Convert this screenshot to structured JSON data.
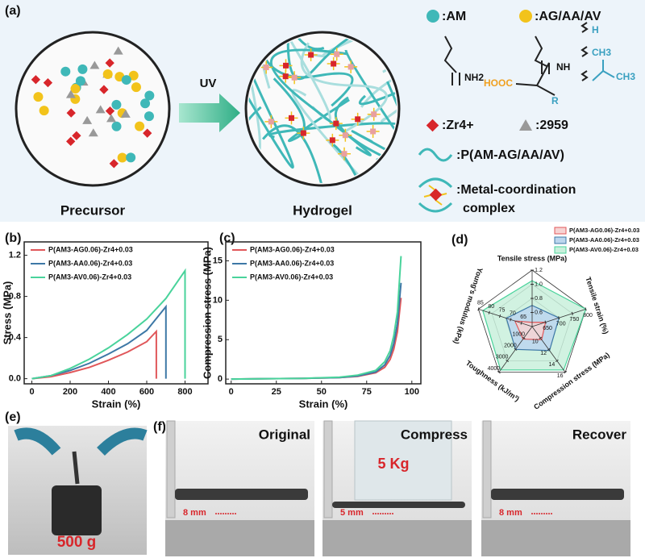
{
  "panel_labels": [
    "(a)",
    "(b)",
    "(c)",
    "(d)",
    "(e)",
    "(f)"
  ],
  "panel_a": {
    "uv": "UV",
    "precursor": "Precursor",
    "hydrogel": "Hydrogel",
    "legend": [
      ":AM",
      ":AG/AA/AV",
      ":Zr4+",
      ":2959",
      ":P(AM-AG/AA/AV)",
      ":Metal-coordination",
      "complex"
    ],
    "chem": [
      "NH2",
      "NH",
      "HOOC",
      "R",
      "H",
      "CH3",
      "CH3"
    ]
  },
  "chart_data": [
    {
      "type": "line",
      "xlabel": "Strain (%)",
      "ylabel": "Stress (MPa)",
      "xlim": [
        -40,
        920
      ],
      "ylim": [
        -0.05,
        1.33
      ],
      "xticks": [
        0,
        200,
        400,
        600,
        800
      ],
      "yticks": [
        {
          "value": 0,
          "label": "0.0"
        },
        0.4,
        0.8,
        1.2
      ],
      "series": [
        {
          "name": "P(AM3-AG0.06)-Zr4+0.03",
          "color": "#e0575a",
          "x": [
            0,
            100,
            200,
            300,
            400,
            500,
            600,
            650,
            650
          ],
          "values": [
            0,
            0.02,
            0.06,
            0.11,
            0.18,
            0.26,
            0.36,
            0.46,
            0
          ]
        },
        {
          "name": "P(AM3-AA0.06)-Zr4+0.03",
          "color": "#3d78a6",
          "x": [
            0,
            100,
            200,
            300,
            400,
            500,
            600,
            700,
            700
          ],
          "values": [
            0,
            0.03,
            0.08,
            0.15,
            0.24,
            0.34,
            0.47,
            0.7,
            0
          ]
        },
        {
          "name": "P(AM3-AV0.06)-Zr4+0.03",
          "color": "#49d39b",
          "x": [
            0,
            100,
            200,
            300,
            400,
            500,
            600,
            700,
            800,
            800
          ],
          "values": [
            0,
            0.03,
            0.1,
            0.19,
            0.3,
            0.43,
            0.58,
            0.78,
            1.05,
            0
          ]
        }
      ]
    },
    {
      "type": "line",
      "xlabel": "Strain (%)",
      "ylabel": "Compression stress (MPa)",
      "xlim": [
        -3,
        105
      ],
      "ylim": [
        -0.6,
        17.4
      ],
      "xticks": [
        0,
        25,
        50,
        75,
        100
      ],
      "yticks": [
        0,
        5,
        10,
        15
      ],
      "series": [
        {
          "name": "P(AM3-AG0.06)-Zr4+0.03",
          "color": "#e0575a",
          "x": [
            0,
            20,
            40,
            60,
            70,
            80,
            85,
            88,
            90,
            92,
            94
          ],
          "values": [
            0,
            0.05,
            0.1,
            0.2,
            0.35,
            0.8,
            1.5,
            2.5,
            3.8,
            6,
            10.3
          ]
        },
        {
          "name": "P(AM3-AA0.06)-Zr4+0.03",
          "color": "#3d78a6",
          "x": [
            0,
            20,
            40,
            60,
            70,
            80,
            85,
            88,
            90,
            92,
            94
          ],
          "values": [
            0,
            0.05,
            0.1,
            0.2,
            0.4,
            0.9,
            1.8,
            3,
            4.5,
            7,
            12.2
          ]
        },
        {
          "name": "P(AM3-AV0.06)-Zr4+0.03",
          "color": "#49d39b",
          "x": [
            0,
            20,
            40,
            60,
            70,
            80,
            85,
            88,
            90,
            92,
            94
          ],
          "values": [
            0,
            0.05,
            0.1,
            0.25,
            0.5,
            1.1,
            2.2,
            3.6,
            5.5,
            8.5,
            15.6
          ]
        }
      ]
    },
    {
      "type": "radar",
      "axes": [
        {
          "name": "Tensile stress (MPa)",
          "lim": [
            0.4,
            1.2
          ],
          "ticks": [
            0.6,
            0.8,
            {
              "value": 1,
              "label": "1.0"
            },
            1.2
          ]
        },
        {
          "name": "Tensile strain (%)",
          "lim": [
            600,
            800
          ],
          "ticks": [
            650,
            700,
            750,
            800
          ]
        },
        {
          "name": "Compression stress (MPa)",
          "lim": [
            8,
            16
          ],
          "ticks": [
            10,
            12,
            14,
            16
          ]
        },
        {
          "name": "Toughness (kJ/m³)",
          "lim": [
            0,
            4000
          ],
          "ticks": [
            1000,
            2000,
            3000,
            4000
          ]
        },
        {
          "name": "Young's modulus (kPa)",
          "lim": [
            60,
            85
          ],
          "ticks": [
            65,
            70,
            75,
            80,
            85
          ]
        }
      ],
      "series": [
        {
          "name": "P(AM3-AG0.06)-Zr4+0.03",
          "color": "#e0575a",
          "fill": "#f6d3d3",
          "values": [
            0.46,
            650,
            10.3,
            1100,
            68
          ]
        },
        {
          "name": "P(AM3-AA0.06)-Zr4+0.03",
          "color": "#3d78a6",
          "fill": "#bcd6ee",
          "values": [
            0.7,
            700,
            12.2,
            2000,
            72
          ]
        },
        {
          "name": "P(AM3-AV0.06)-Zr4+0.03",
          "color": "#49d39b",
          "fill": "#c9f0dc",
          "values": [
            1.05,
            800,
            15.6,
            3800,
            83
          ]
        }
      ]
    }
  ],
  "panel_e": {
    "load": "500 g"
  },
  "panel_f": {
    "titles": [
      "Original",
      "Compress",
      "Recover"
    ],
    "load": "5 Kg",
    "heights": [
      "8 mm",
      "5 mm",
      "8 mm"
    ]
  }
}
